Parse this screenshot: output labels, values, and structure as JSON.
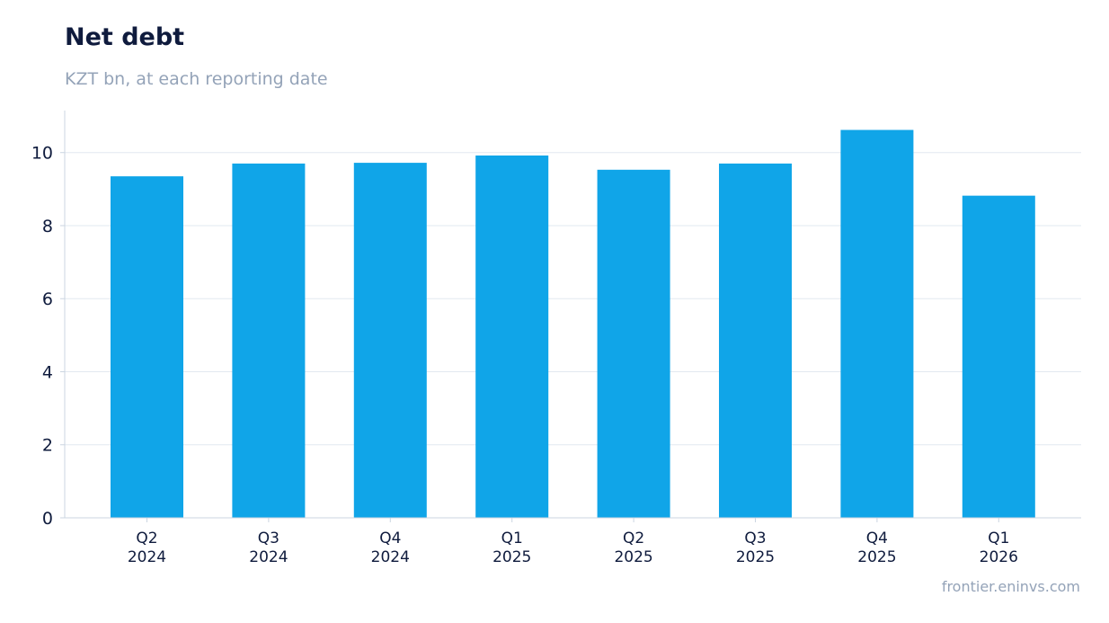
{
  "header": {
    "title": "Net debt",
    "subtitle": "KZT bn, at each reporting date"
  },
  "footer": {
    "source": "frontier.eninvs.com"
  },
  "colors": {
    "bar": "#10a5e8",
    "grid": "#e2e8f0",
    "axis": "#cbd5e1",
    "text": "#0f1b3d",
    "muted": "#94a3b8"
  },
  "chart_data": {
    "type": "bar",
    "title": "Net debt",
    "subtitle": "KZT bn, at each reporting date",
    "categories": [
      [
        "Q2",
        "2024"
      ],
      [
        "Q3",
        "2024"
      ],
      [
        "Q4",
        "2024"
      ],
      [
        "Q1",
        "2025"
      ],
      [
        "Q2",
        "2025"
      ],
      [
        "Q3",
        "2025"
      ],
      [
        "Q4",
        "2025"
      ],
      [
        "Q1",
        "2026"
      ]
    ],
    "values": [
      9.35,
      9.7,
      9.72,
      9.92,
      9.53,
      9.7,
      10.62,
      8.82
    ],
    "yticks": [
      0,
      2,
      4,
      6,
      8,
      10
    ],
    "ylim": [
      0,
      11.15
    ],
    "xlabel": "",
    "ylabel": "",
    "grid": true,
    "legend": "none"
  }
}
